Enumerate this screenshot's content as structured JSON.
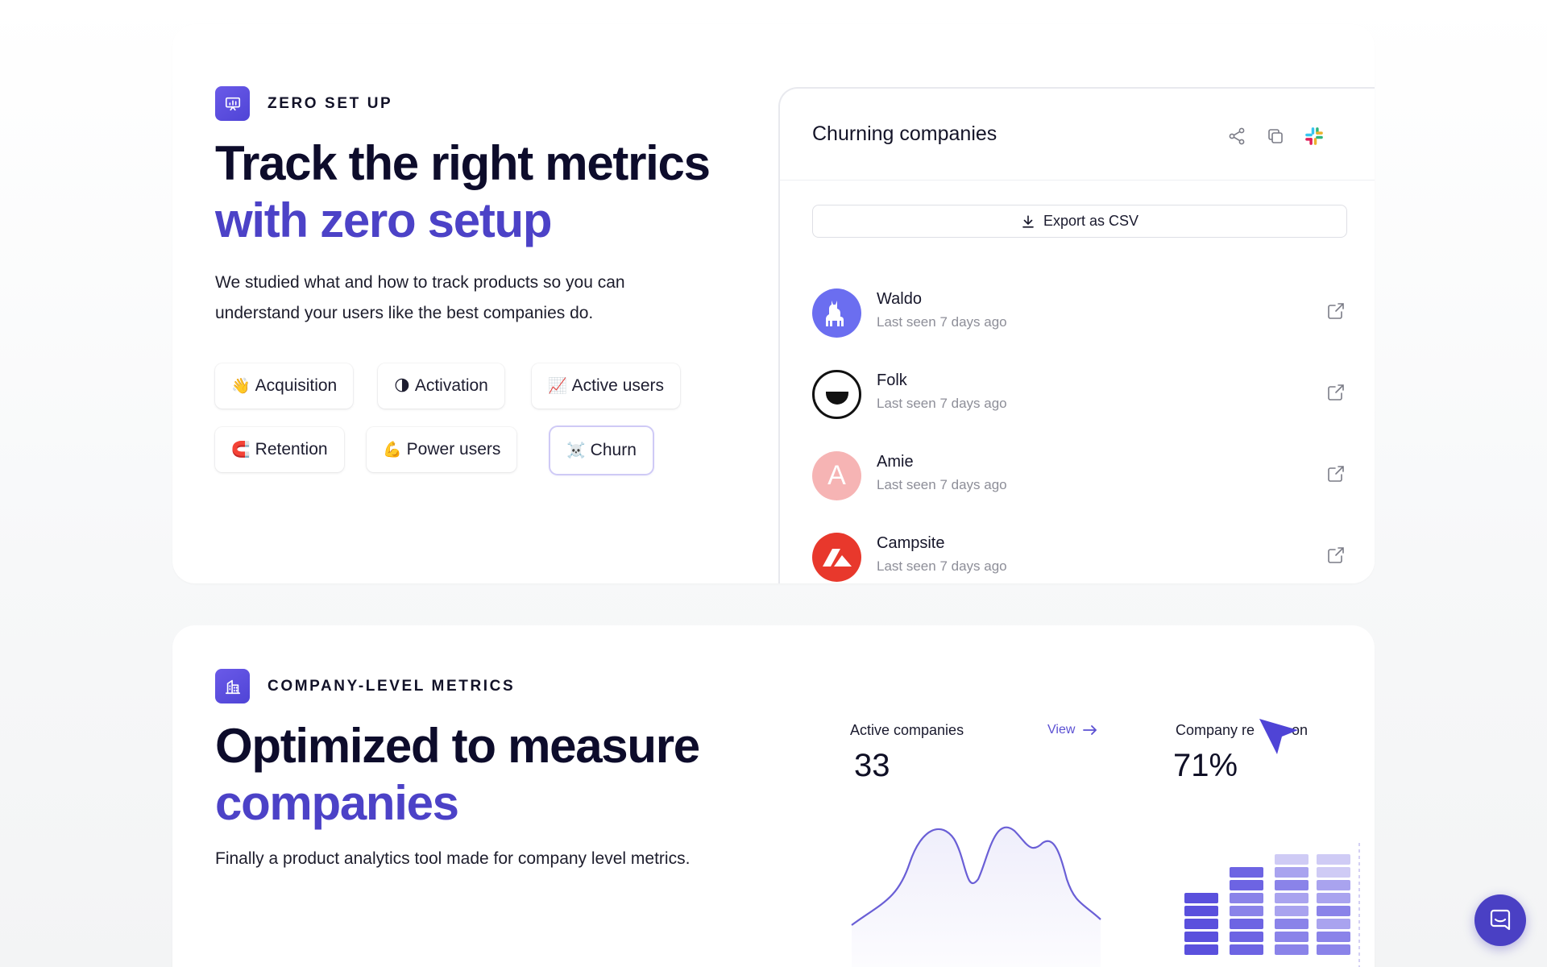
{
  "section_setup": {
    "label": "ZERO SET UP",
    "headline_line1": "Track the right metrics",
    "headline_line2": "with zero setup",
    "description_line1": "We studied what and how to track products so you can",
    "description_line2": "understand your users like the best companies do.",
    "chips": [
      {
        "emoji": "👋",
        "label": "Acquisition"
      },
      {
        "emoji": "🌗",
        "label": "Activation"
      },
      {
        "emoji": "📈",
        "label": "Active users"
      },
      {
        "emoji": "🧲",
        "label": "Retention"
      },
      {
        "emoji": "💪",
        "label": "Power users"
      },
      {
        "emoji": "☠️",
        "label": "Churn",
        "selected": true
      }
    ]
  },
  "churn_panel": {
    "title": "Churning companies",
    "export_label": "Export as CSV",
    "companies": [
      {
        "name": "Waldo",
        "last_seen": "Last seen 7 days ago",
        "avatar_color": "#6b6ef0"
      },
      {
        "name": "Folk",
        "last_seen": "Last seen 7 days ago",
        "avatar_color": "#ffffff"
      },
      {
        "name": "Amie",
        "last_seen": "Last seen 7 days ago",
        "avatar_color": "#f6b4b4",
        "avatar_letter": "A"
      },
      {
        "name": "Campsite",
        "last_seen": "Last seen 7 days ago",
        "avatar_color": "#e8382c"
      }
    ]
  },
  "section_company": {
    "label": "COMPANY-LEVEL METRICS",
    "headline_line1": "Optimized to measure",
    "headline_line2": "companies",
    "description": "Finally a product analytics tool made for company level metrics.",
    "active_companies": {
      "label": "Active companies",
      "value": "33",
      "view_label": "View"
    },
    "retention": {
      "label_left": "Company re",
      "label_right": "on",
      "value": "71%"
    }
  },
  "colors": {
    "accent": "#4c42c7",
    "headline": "#0d0c2b",
    "muted": "#8d8e98"
  }
}
